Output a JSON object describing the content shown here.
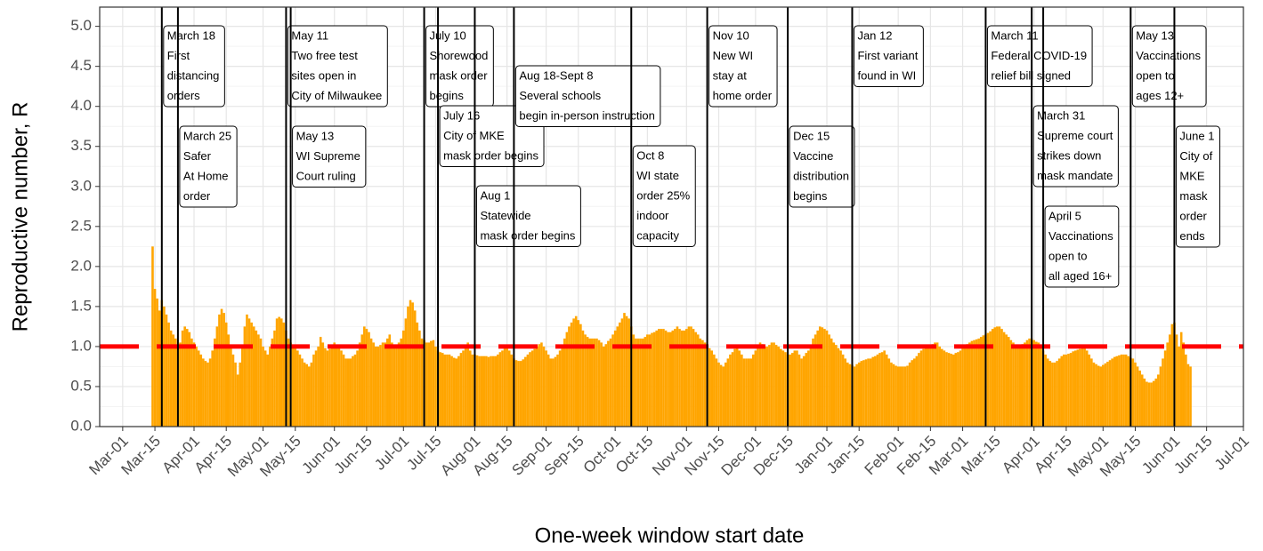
{
  "chart_data": {
    "type": "bar",
    "x_label": "One-week window start date",
    "y_label": "Reproductive number, R",
    "color": "#ffa500",
    "grid": true,
    "reference_line": {
      "value": 1,
      "color": "#ff0000"
    },
    "xlim": [
      -10,
      487
    ],
    "ylim": [
      0,
      5.24
    ],
    "xticks": [
      {
        "value": 0,
        "label": "Mar-01"
      },
      {
        "value": 14,
        "label": "Mar-15"
      },
      {
        "value": 31,
        "label": "Apr-01"
      },
      {
        "value": 45,
        "label": "Apr-15"
      },
      {
        "value": 61,
        "label": "May-01"
      },
      {
        "value": 75,
        "label": "May-15"
      },
      {
        "value": 92,
        "label": "Jun-01"
      },
      {
        "value": 106,
        "label": "Jun-15"
      },
      {
        "value": 122,
        "label": "Jul-01"
      },
      {
        "value": 136,
        "label": "Jul-15"
      },
      {
        "value": 153,
        "label": "Aug-01"
      },
      {
        "value": 167,
        "label": "Aug-15"
      },
      {
        "value": 184,
        "label": "Sep-01"
      },
      {
        "value": 198,
        "label": "Sep-15"
      },
      {
        "value": 214,
        "label": "Oct-01"
      },
      {
        "value": 228,
        "label": "Oct-15"
      },
      {
        "value": 245,
        "label": "Nov-01"
      },
      {
        "value": 259,
        "label": "Nov-15"
      },
      {
        "value": 275,
        "label": "Dec-01"
      },
      {
        "value": 289,
        "label": "Dec-15"
      },
      {
        "value": 306,
        "label": "Jan-01"
      },
      {
        "value": 320,
        "label": "Jan-15"
      },
      {
        "value": 337,
        "label": "Feb-01"
      },
      {
        "value": 351,
        "label": "Feb-15"
      },
      {
        "value": 365,
        "label": "Mar-01"
      },
      {
        "value": 379,
        "label": "Mar-15"
      },
      {
        "value": 396,
        "label": "Apr-01"
      },
      {
        "value": 410,
        "label": "Apr-15"
      },
      {
        "value": 426,
        "label": "May-01"
      },
      {
        "value": 440,
        "label": "May-15"
      },
      {
        "value": 457,
        "label": "Jun-01"
      },
      {
        "value": 471,
        "label": "Jun-15"
      },
      {
        "value": 487,
        "label": "Jul-01"
      }
    ],
    "yticks": [
      {
        "value": 0,
        "label": "0.0"
      },
      {
        "value": 0.5,
        "label": "0.5"
      },
      {
        "value": 1,
        "label": "1.0"
      },
      {
        "value": 1.5,
        "label": "1.5"
      },
      {
        "value": 2,
        "label": "2.0"
      },
      {
        "value": 2.5,
        "label": "2.5"
      },
      {
        "value": 3,
        "label": "3.0"
      },
      {
        "value": 3.5,
        "label": "3.5"
      },
      {
        "value": 4,
        "label": "4.0"
      },
      {
        "value": 4.5,
        "label": "4.5"
      },
      {
        "value": 5,
        "label": "5.0"
      }
    ],
    "annotations": [
      {
        "x": 17,
        "lines": [
          "March 18",
          "First",
          "distancing",
          "orders"
        ]
      },
      {
        "x": 24,
        "lines": [
          "March 25",
          "Safer",
          "At Home",
          "order"
        ]
      },
      {
        "x": 71,
        "lines": [
          "May 11",
          "Two free test",
          "sites open in",
          "City of Milwaukee"
        ]
      },
      {
        "x": 73,
        "lines": [
          "May 13",
          "WI Supreme",
          "Court ruling"
        ]
      },
      {
        "x": 131,
        "lines": [
          "July 10",
          "Shorewood",
          "mask order",
          "begins"
        ]
      },
      {
        "x": 137,
        "lines": [
          "July 16",
          "City of MKE",
          "mask order begins"
        ]
      },
      {
        "x": 153,
        "lines": [
          "Aug 1",
          "Statewide",
          "mask order begins"
        ]
      },
      {
        "x": 170,
        "lines": [
          "Aug 18-Sept 8",
          "Several schools",
          "begin in-person instruction"
        ]
      },
      {
        "x": 221,
        "lines": [
          "Oct 8",
          "WI state",
          "order 25%",
          "indoor",
          "capacity"
        ]
      },
      {
        "x": 254,
        "lines": [
          "Nov 10",
          "New WI",
          "stay at",
          "home order"
        ]
      },
      {
        "x": 289,
        "lines": [
          "Dec 15",
          "Vaccine",
          "distribution",
          "begins"
        ]
      },
      {
        "x": 317,
        "lines": [
          "Jan 12",
          "First variant",
          "found in WI"
        ]
      },
      {
        "x": 375,
        "lines": [
          "March 11",
          "Federal COVID-19",
          "relief bill signed"
        ]
      },
      {
        "x": 395,
        "lines": [
          "March 31",
          "Supreme court",
          "strikes down",
          "mask mandate"
        ]
      },
      {
        "x": 400,
        "lines": [
          "April 5",
          "Vaccinations",
          "open to",
          "all aged 16+"
        ]
      },
      {
        "x": 438,
        "lines": [
          "May 13",
          "Vaccinations",
          "open to",
          "ages 12+"
        ]
      },
      {
        "x": 457,
        "lines": [
          "June 1",
          "City of",
          "MKE",
          "mask",
          "order",
          "ends"
        ]
      }
    ],
    "x": [
      13,
      14,
      15,
      16,
      17,
      18,
      19,
      20,
      21,
      22,
      23,
      24,
      25,
      26,
      27,
      28,
      29,
      30,
      31,
      32,
      33,
      34,
      35,
      36,
      37,
      38,
      39,
      40,
      41,
      42,
      43,
      44,
      45,
      46,
      47,
      48,
      49,
      50,
      51,
      52,
      53,
      54,
      55,
      56,
      57,
      58,
      59,
      60,
      61,
      62,
      63,
      64,
      65,
      66,
      67,
      68,
      69,
      70,
      71,
      72,
      73,
      74,
      75,
      76,
      77,
      78,
      79,
      80,
      81,
      82,
      83,
      84,
      85,
      86,
      87,
      88,
      89,
      90,
      91,
      92,
      93,
      94,
      95,
      96,
      97,
      98,
      99,
      100,
      101,
      102,
      103,
      104,
      105,
      106,
      107,
      108,
      109,
      110,
      111,
      112,
      113,
      114,
      115,
      116,
      117,
      118,
      119,
      120,
      121,
      122,
      123,
      124,
      125,
      126,
      127,
      128,
      129,
      130,
      131,
      132,
      133,
      134,
      135,
      136,
      137,
      138,
      139,
      140,
      141,
      142,
      143,
      144,
      145,
      146,
      147,
      148,
      149,
      150,
      151,
      152,
      153,
      154,
      155,
      156,
      157,
      158,
      159,
      160,
      161,
      162,
      163,
      164,
      165,
      166,
      167,
      168,
      169,
      170,
      171,
      172,
      173,
      174,
      175,
      176,
      177,
      178,
      179,
      180,
      181,
      182,
      183,
      184,
      185,
      186,
      187,
      188,
      189,
      190,
      191,
      192,
      193,
      194,
      195,
      196,
      197,
      198,
      199,
      200,
      201,
      202,
      203,
      204,
      205,
      206,
      207,
      208,
      209,
      210,
      211,
      212,
      213,
      214,
      215,
      216,
      217,
      218,
      219,
      220,
      221,
      222,
      223,
      224,
      225,
      226,
      227,
      228,
      229,
      230,
      231,
      232,
      233,
      234,
      235,
      236,
      237,
      238,
      239,
      240,
      241,
      242,
      243,
      244,
      245,
      246,
      247,
      248,
      249,
      250,
      251,
      252,
      253,
      254,
      255,
      256,
      257,
      258,
      259,
      260,
      261,
      262,
      263,
      264,
      265,
      266,
      267,
      268,
      269,
      270,
      271,
      272,
      273,
      274,
      275,
      276,
      277,
      278,
      279,
      280,
      281,
      282,
      283,
      284,
      285,
      286,
      287,
      288,
      289,
      290,
      291,
      292,
      293,
      294,
      295,
      296,
      297,
      298,
      299,
      300,
      301,
      302,
      303,
      304,
      305,
      306,
      307,
      308,
      309,
      310,
      311,
      312,
      313,
      314,
      315,
      316,
      317,
      318,
      319,
      320,
      321,
      322,
      323,
      324,
      325,
      326,
      327,
      328,
      329,
      330,
      331,
      332,
      333,
      334,
      335,
      336,
      337,
      338,
      339,
      340,
      341,
      342,
      343,
      344,
      345,
      346,
      347,
      348,
      349,
      350,
      351,
      352,
      353,
      354,
      355,
      356,
      357,
      358,
      359,
      360,
      361,
      362,
      363,
      364,
      365,
      366,
      367,
      368,
      369,
      370,
      371,
      372,
      373,
      374,
      375,
      376,
      377,
      378,
      379,
      380,
      381,
      382,
      383,
      384,
      385,
      386,
      387,
      388,
      389,
      390,
      391,
      392,
      393,
      394,
      395,
      396,
      397,
      398,
      399,
      400,
      401,
      402,
      403,
      404,
      405,
      406,
      407,
      408,
      409,
      410,
      411,
      412,
      413,
      414,
      415,
      416,
      417,
      418,
      419,
      420,
      421,
      422,
      423,
      424,
      425,
      426,
      427,
      428,
      429,
      430,
      431,
      432,
      433,
      434,
      435,
      436,
      437,
      438,
      439,
      440,
      441,
      442,
      443,
      444,
      445,
      446,
      447,
      448,
      449,
      450,
      451,
      452,
      453,
      454,
      455,
      456,
      457,
      458,
      459,
      460,
      461,
      462,
      463,
      464
    ],
    "values": [
      2.25,
      1.72,
      1.6,
      1.45,
      1.58,
      1.5,
      1.4,
      1.3,
      1.2,
      1.15,
      1.1,
      1.0,
      1.05,
      1.2,
      1.25,
      1.22,
      1.18,
      1.1,
      1.05,
      1.0,
      0.95,
      0.9,
      0.85,
      0.82,
      0.8,
      0.85,
      0.95,
      1.1,
      1.25,
      1.4,
      1.47,
      1.42,
      1.3,
      1.15,
      1.0,
      0.9,
      0.8,
      0.65,
      0.8,
      1.0,
      1.25,
      1.4,
      1.35,
      1.3,
      1.25,
      1.2,
      1.15,
      1.1,
      1.0,
      0.95,
      0.9,
      1.0,
      1.1,
      1.2,
      1.35,
      1.37,
      1.35,
      1.3,
      1.2,
      1.1,
      1.05,
      1.0,
      0.98,
      0.95,
      0.9,
      0.85,
      0.8,
      0.78,
      0.75,
      0.8,
      0.9,
      0.95,
      1.0,
      1.12,
      1.05,
      0.98,
      0.95,
      0.97,
      1.0,
      1.05,
      1.0,
      0.98,
      0.95,
      0.9,
      0.85,
      0.85,
      0.85,
      0.88,
      0.9,
      0.95,
      1.05,
      1.15,
      1.25,
      1.22,
      1.18,
      1.1,
      1.05,
      1.0,
      1.0,
      1.02,
      1.05,
      1.05,
      1.1,
      1.15,
      1.05,
      1.0,
      1.02,
      1.05,
      1.1,
      1.2,
      1.35,
      1.5,
      1.58,
      1.55,
      1.45,
      1.3,
      1.2,
      1.1,
      1.08,
      1.05,
      1.05,
      1.07,
      1.08,
      1.0,
      0.95,
      0.93,
      0.92,
      0.9,
      0.9,
      0.9,
      0.88,
      0.86,
      0.85,
      0.88,
      0.92,
      0.95,
      1.0,
      1.05,
      0.95,
      0.9,
      0.9,
      0.89,
      0.88,
      0.88,
      0.88,
      0.88,
      0.87,
      0.88,
      0.88,
      0.88,
      0.9,
      0.93,
      0.95,
      0.98,
      1.0,
      0.95,
      0.9,
      0.85,
      0.83,
      0.82,
      0.82,
      0.84,
      0.87,
      0.9,
      0.93,
      0.95,
      0.97,
      1.0,
      1.03,
      1.05,
      1.0,
      0.95,
      0.9,
      0.85,
      0.85,
      0.87,
      0.9,
      0.95,
      1.0,
      1.1,
      1.18,
      1.25,
      1.3,
      1.35,
      1.38,
      1.33,
      1.28,
      1.2,
      1.15,
      1.12,
      1.1,
      1.1,
      1.1,
      1.1,
      1.08,
      1.05,
      1.0,
      1.03,
      1.07,
      1.1,
      1.15,
      1.2,
      1.25,
      1.3,
      1.35,
      1.42,
      1.38,
      1.35,
      1.25,
      1.15,
      1.1,
      1.1,
      1.1,
      1.1,
      1.12,
      1.15,
      1.15,
      1.17,
      1.18,
      1.2,
      1.22,
      1.22,
      1.22,
      1.2,
      1.18,
      1.18,
      1.2,
      1.22,
      1.25,
      1.22,
      1.2,
      1.2,
      1.22,
      1.25,
      1.25,
      1.22,
      1.18,
      1.15,
      1.1,
      1.08,
      1.05,
      1.0,
      0.98,
      0.95,
      0.9,
      0.85,
      0.8,
      0.77,
      0.75,
      0.8,
      0.85,
      0.9,
      0.93,
      0.97,
      1.0,
      0.95,
      0.9,
      0.85,
      0.85,
      0.85,
      0.85,
      0.9,
      0.95,
      1.0,
      1.05,
      1.03,
      1.0,
      1.0,
      1.02,
      1.05,
      1.05,
      1.02,
      1.0,
      0.97,
      0.95,
      0.93,
      0.9,
      0.9,
      0.92,
      0.95,
      0.95,
      0.9,
      0.85,
      0.88,
      0.92,
      0.95,
      1.02,
      1.1,
      1.15,
      1.2,
      1.25,
      1.24,
      1.22,
      1.2,
      1.15,
      1.1,
      1.05,
      1.02,
      0.98,
      0.95,
      0.9,
      0.85,
      0.8,
      0.78,
      0.77,
      0.75,
      0.78,
      0.8,
      0.82,
      0.83,
      0.84,
      0.85,
      0.85,
      0.87,
      0.88,
      0.9,
      0.92,
      0.93,
      0.95,
      0.9,
      0.85,
      0.8,
      0.78,
      0.76,
      0.75,
      0.75,
      0.75,
      0.75,
      0.76,
      0.8,
      0.83,
      0.85,
      0.88,
      0.92,
      0.95,
      0.97,
      1.0,
      1.01,
      1.02,
      1.03,
      1.05,
      1.05,
      1.0,
      0.97,
      0.95,
      0.93,
      0.92,
      0.91,
      0.9,
      0.92,
      0.93,
      0.95,
      0.98,
      1.0,
      1.03,
      1.05,
      1.07,
      1.08,
      1.09,
      1.1,
      1.12,
      1.14,
      1.15,
      1.17,
      1.19,
      1.22,
      1.24,
      1.25,
      1.25,
      1.22,
      1.18,
      1.15,
      1.12,
      1.08,
      1.05,
      1.02,
      1.0,
      1.0,
      1.03,
      1.05,
      1.08,
      1.1,
      1.1,
      1.08,
      1.06,
      1.05,
      1.0,
      0.95,
      0.9,
      0.85,
      0.82,
      0.8,
      0.8,
      0.82,
      0.85,
      0.88,
      0.9,
      0.9,
      0.91,
      0.92,
      0.94,
      0.95,
      0.96,
      0.97,
      0.98,
      0.98,
      0.95,
      0.9,
      0.85,
      0.8,
      0.78,
      0.76,
      0.75,
      0.77,
      0.79,
      0.81,
      0.83,
      0.85,
      0.87,
      0.88,
      0.89,
      0.9,
      0.9,
      0.9,
      0.88,
      0.86,
      0.85,
      0.8,
      0.75,
      0.7,
      0.65,
      0.6,
      0.56,
      0.55,
      0.55,
      0.57,
      0.6,
      0.65,
      0.75,
      0.85,
      0.95,
      1.05,
      1.15,
      1.28,
      1.3,
      1.15,
      1.0,
      1.18,
      1.05,
      0.9,
      0.78,
      0.75
    ]
  }
}
